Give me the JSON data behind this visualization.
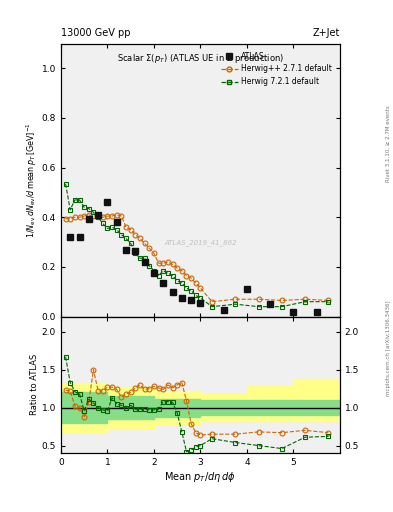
{
  "title_left": "13000 GeV pp",
  "title_right": "Z+Jet",
  "plot_title": "Scalar $\\Sigma(p_T)$ (ATLAS UE in Z production)",
  "ylabel_main": "$1/N_{\\rm ev}\\,dN_{\\rm ev}/d\\,{\\rm mean}\\,p_T\\,[{\\rm GeV}]^{-1}$",
  "ylabel_ratio": "Ratio to ATLAS",
  "xlabel": "Mean $p_T/d\\eta\\,d\\phi$",
  "right_label_top": "Rivet 3.1.10, ≥ 2.7M events",
  "right_label_bot": "mcplots.cern.ch [arXiv:1306.3436]",
  "watermark": "ATLAS_2019_41_862",
  "atlas_x": [
    0.2,
    0.4,
    0.6,
    0.8,
    1.0,
    1.2,
    1.4,
    1.6,
    1.8,
    2.0,
    2.2,
    2.4,
    2.6,
    2.8,
    3.0,
    3.5,
    4.0,
    4.5,
    5.0,
    5.5
  ],
  "atlas_y": [
    0.32,
    0.32,
    0.395,
    0.41,
    0.46,
    0.38,
    0.27,
    0.265,
    0.22,
    0.175,
    0.135,
    0.1,
    0.075,
    0.065,
    0.055,
    0.025,
    0.11,
    0.05,
    0.02,
    0.02
  ],
  "herwig1_x": [
    0.1,
    0.2,
    0.3,
    0.4,
    0.5,
    0.6,
    0.7,
    0.8,
    0.9,
    1.0,
    1.1,
    1.2,
    1.3,
    1.4,
    1.5,
    1.6,
    1.7,
    1.8,
    1.9,
    2.0,
    2.1,
    2.2,
    2.3,
    2.4,
    2.5,
    2.6,
    2.7,
    2.8,
    2.9,
    3.0,
    3.25,
    3.75,
    4.25,
    4.75,
    5.25,
    5.75
  ],
  "herwig1_y": [
    0.395,
    0.395,
    0.4,
    0.4,
    0.405,
    0.41,
    0.405,
    0.405,
    0.4,
    0.405,
    0.405,
    0.41,
    0.405,
    0.36,
    0.35,
    0.33,
    0.315,
    0.295,
    0.275,
    0.255,
    0.215,
    0.215,
    0.22,
    0.21,
    0.195,
    0.185,
    0.165,
    0.155,
    0.135,
    0.115,
    0.06,
    0.07,
    0.07,
    0.065,
    0.07,
    0.065
  ],
  "herwig1_color": "#cc6600",
  "herwig1_label": "Herwig++ 2.7.1 default",
  "herwig2_x": [
    0.1,
    0.2,
    0.3,
    0.4,
    0.5,
    0.6,
    0.7,
    0.8,
    0.9,
    1.0,
    1.1,
    1.2,
    1.3,
    1.4,
    1.5,
    1.6,
    1.7,
    1.8,
    1.9,
    2.0,
    2.1,
    2.2,
    2.3,
    2.4,
    2.5,
    2.6,
    2.7,
    2.8,
    2.9,
    3.0,
    3.25,
    3.75,
    4.25,
    4.75,
    5.25,
    5.75
  ],
  "herwig2_y": [
    0.535,
    0.43,
    0.47,
    0.47,
    0.44,
    0.435,
    0.42,
    0.4,
    0.375,
    0.355,
    0.36,
    0.35,
    0.33,
    0.315,
    0.295,
    0.255,
    0.235,
    0.235,
    0.205,
    0.185,
    0.165,
    0.185,
    0.175,
    0.165,
    0.145,
    0.135,
    0.115,
    0.105,
    0.085,
    0.075,
    0.04,
    0.05,
    0.04,
    0.04,
    0.06,
    0.06
  ],
  "herwig2_color": "#006600",
  "herwig2_label": "Herwig 7.2.1 default",
  "ratio_herwig1_x": [
    0.1,
    0.2,
    0.3,
    0.4,
    0.5,
    0.6,
    0.7,
    0.8,
    0.9,
    1.0,
    1.1,
    1.2,
    1.3,
    1.4,
    1.5,
    1.6,
    1.7,
    1.8,
    1.9,
    2.0,
    2.1,
    2.2,
    2.3,
    2.4,
    2.5,
    2.6,
    2.7,
    2.8,
    2.9,
    3.0,
    3.25,
    3.75,
    4.25,
    4.75,
    5.25,
    5.75
  ],
  "ratio_herwig1_y": [
    1.23,
    1.22,
    1.02,
    1.0,
    0.88,
    1.08,
    1.5,
    1.22,
    1.22,
    1.27,
    1.27,
    1.24,
    1.14,
    1.18,
    1.2,
    1.26,
    1.3,
    1.24,
    1.25,
    1.28,
    1.26,
    1.24,
    1.3,
    1.26,
    1.3,
    1.33,
    1.09,
    0.79,
    0.67,
    0.64,
    0.65,
    0.65,
    0.68,
    0.67,
    0.7,
    0.67
  ],
  "ratio_herwig2_x": [
    0.1,
    0.2,
    0.3,
    0.4,
    0.5,
    0.6,
    0.7,
    0.8,
    0.9,
    1.0,
    1.1,
    1.2,
    1.3,
    1.4,
    1.5,
    1.6,
    1.7,
    1.8,
    1.9,
    2.0,
    2.1,
    2.2,
    2.3,
    2.4,
    2.5,
    2.6,
    2.7,
    2.8,
    2.9,
    3.0,
    3.25,
    3.75,
    4.25,
    4.75,
    5.25,
    5.75
  ],
  "ratio_herwig2_y": [
    1.67,
    1.33,
    1.21,
    1.18,
    0.96,
    1.11,
    1.06,
    1.0,
    0.97,
    0.95,
    1.13,
    1.05,
    1.03,
    1.0,
    1.03,
    0.98,
    0.98,
    0.98,
    0.97,
    0.97,
    0.98,
    1.08,
    1.08,
    1.07,
    0.93,
    0.68,
    0.42,
    0.44,
    0.48,
    0.5,
    0.59,
    0.54,
    0.5,
    0.46,
    0.61,
    0.62
  ],
  "band_green_x": [
    0.0,
    1.0,
    2.0,
    3.0,
    4.0,
    5.0,
    6.0
  ],
  "band_green_lo": [
    0.8,
    0.85,
    0.88,
    0.9,
    0.9,
    0.9,
    0.9
  ],
  "band_green_hi": [
    1.2,
    1.15,
    1.12,
    1.1,
    1.1,
    1.1,
    1.1
  ],
  "band_yellow_x": [
    0.0,
    1.0,
    2.0,
    3.0,
    4.0,
    5.0,
    6.0
  ],
  "band_yellow_lo": [
    0.68,
    0.73,
    0.78,
    0.82,
    0.82,
    0.82,
    0.82
  ],
  "band_yellow_hi": [
    1.32,
    1.27,
    1.22,
    1.18,
    1.28,
    1.38,
    1.48
  ],
  "xlim": [
    0,
    6
  ],
  "ylim_main": [
    0,
    1.1
  ],
  "ylim_ratio": [
    0.4,
    2.2
  ],
  "yticks_main": [
    0.0,
    0.2,
    0.4,
    0.6,
    0.8,
    1.0
  ],
  "yticks_ratio": [
    0.5,
    1.0,
    1.5,
    2.0
  ],
  "xticks": [
    0,
    1,
    2,
    3,
    4,
    5
  ],
  "bg_color": "#f0f0f0",
  "atlas_color": "#111111",
  "atlas_markersize": 4.5
}
